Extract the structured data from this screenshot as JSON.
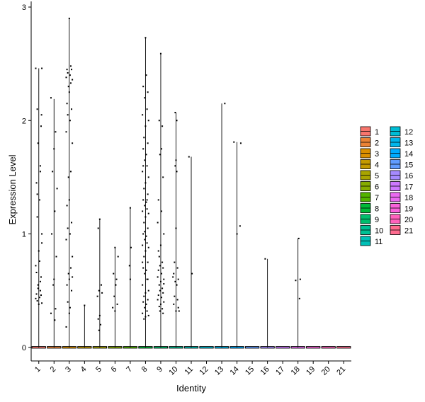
{
  "chart_data": {
    "type": "violin",
    "xlabel": "Identity",
    "ylabel": "Expression Level",
    "ylim": [
      -0.12,
      3.05
    ],
    "yticks": [
      0,
      1,
      2,
      3
    ],
    "categories": [
      "1",
      "2",
      "3",
      "4",
      "5",
      "6",
      "7",
      "8",
      "9",
      "10",
      "11",
      "12",
      "13",
      "14",
      "15",
      "16",
      "17",
      "18",
      "19",
      "20",
      "21"
    ],
    "colors": [
      "#F8766D",
      "#EB8335",
      "#DA8F00",
      "#C49A00",
      "#A9A400",
      "#86AC00",
      "#53B400",
      "#00BA38",
      "#00BE6D",
      "#00C094",
      "#00C0B7",
      "#00BDD5",
      "#00B6EB",
      "#00ABFD",
      "#619CFF",
      "#A58AFF",
      "#CF78FF",
      "#EA6AF1",
      "#FA62DB",
      "#FF62BC",
      "#FF6C90"
    ],
    "legend_position": "right",
    "max_values": [
      2.46,
      2.19,
      2.9,
      0.37,
      1.13,
      0.88,
      1.23,
      2.73,
      2.59,
      2.07,
      1.68,
      0,
      2.15,
      1.81,
      0,
      0.78,
      0,
      0.96,
      0,
      0,
      0
    ],
    "points": [
      [
        [
          -0.2,
          2.46
        ],
        [
          0.2,
          2.46
        ],
        [
          -0.1,
          2.1
        ],
        [
          0.15,
          1.95
        ],
        [
          -0.05,
          1.8
        ],
        [
          0.1,
          1.6
        ],
        [
          -0.15,
          1.45
        ],
        [
          0.05,
          1.3
        ],
        [
          -0.1,
          1.15
        ],
        [
          0.2,
          1.0
        ],
        [
          0.0,
          0.85
        ],
        [
          -0.2,
          0.72
        ],
        [
          0.15,
          0.62
        ],
        [
          -0.05,
          0.55
        ],
        [
          0.1,
          0.5
        ],
        [
          -0.15,
          0.47
        ],
        [
          0.05,
          0.44
        ],
        [
          -0.1,
          0.41
        ],
        [
          0.2,
          0.39
        ],
        [
          0.0,
          0.38
        ],
        [
          -0.2,
          0.43
        ],
        [
          0.15,
          0.46
        ],
        [
          -0.05,
          0.52
        ],
        [
          0.1,
          0.58
        ],
        [
          -0.15,
          0.66
        ],
        [
          0.05,
          0.76
        ],
        [
          0.2,
          0.92
        ],
        [
          -0.1,
          1.35
        ],
        [
          0.1,
          1.55
        ],
        [
          0.18,
          2.05
        ]
      ],
      [
        [
          -0.2,
          2.2
        ],
        [
          0.1,
          1.9
        ],
        [
          0.0,
          1.75
        ],
        [
          -0.1,
          1.55
        ],
        [
          0.2,
          1.4
        ],
        [
          0.05,
          1.2
        ],
        [
          -0.15,
          1.0
        ],
        [
          0.15,
          0.8
        ],
        [
          0.0,
          0.6
        ],
        [
          -0.05,
          0.55
        ],
        [
          0.1,
          0.34
        ],
        [
          -0.2,
          0.3
        ],
        [
          0.05,
          0.24
        ]
      ],
      [
        [
          0.0,
          2.9
        ],
        [
          -0.15,
          2.45
        ],
        [
          0.15,
          2.45
        ],
        [
          -0.1,
          2.42
        ],
        [
          0.05,
          2.4
        ],
        [
          -0.2,
          2.38
        ],
        [
          0.2,
          2.36
        ],
        [
          0.1,
          2.33
        ],
        [
          -0.05,
          2.3
        ],
        [
          0.0,
          2.25
        ],
        [
          -0.15,
          2.15
        ],
        [
          0.15,
          2.1
        ],
        [
          -0.1,
          2.05
        ],
        [
          0.05,
          2.0
        ],
        [
          -0.2,
          1.9
        ],
        [
          0.2,
          1.8
        ],
        [
          0.1,
          1.55
        ],
        [
          -0.05,
          1.5
        ],
        [
          0.0,
          1.3
        ],
        [
          -0.15,
          1.25
        ],
        [
          0.15,
          1.1
        ],
        [
          -0.1,
          1.05
        ],
        [
          0.05,
          1.0
        ],
        [
          -0.2,
          0.95
        ],
        [
          0.2,
          0.8
        ],
        [
          0.1,
          0.7
        ],
        [
          -0.05,
          0.65
        ],
        [
          0.0,
          0.6
        ],
        [
          -0.15,
          0.55
        ],
        [
          0.15,
          0.5
        ],
        [
          -0.1,
          0.4
        ],
        [
          0.05,
          0.35
        ],
        [
          0.0,
          0.3
        ],
        [
          -0.2,
          0.18
        ],
        [
          0.2,
          0.62
        ],
        [
          0.1,
          2.48
        ]
      ],
      [
        [
          0.0,
          0.37
        ]
      ],
      [
        [
          0.0,
          1.13
        ],
        [
          -0.1,
          1.05
        ],
        [
          0.1,
          0.55
        ],
        [
          -0.05,
          0.5
        ],
        [
          0.15,
          0.48
        ],
        [
          -0.15,
          0.45
        ],
        [
          0.0,
          0.28
        ],
        [
          -0.1,
          0.25
        ],
        [
          0.05,
          0.2
        ],
        [
          -0.05,
          0.15
        ]
      ],
      [
        [
          0.0,
          0.88
        ],
        [
          -0.1,
          0.65
        ],
        [
          0.1,
          0.6
        ],
        [
          0.05,
          0.55
        ],
        [
          -0.05,
          0.45
        ],
        [
          0.15,
          0.38
        ],
        [
          -0.15,
          0.35
        ],
        [
          0.0,
          0.32
        ],
        [
          0.2,
          0.8
        ]
      ],
      [
        [
          0.0,
          1.23
        ],
        [
          0.05,
          0.88
        ],
        [
          -0.05,
          0.72
        ],
        [
          0.0,
          0.6
        ]
      ],
      [
        [
          0.0,
          2.73
        ],
        [
          -0.15,
          2.3
        ],
        [
          0.15,
          2.25
        ],
        [
          -0.05,
          2.2
        ],
        [
          0.1,
          2.1
        ],
        [
          -0.2,
          2.05
        ],
        [
          0.2,
          2.0
        ],
        [
          0.0,
          1.95
        ],
        [
          -0.1,
          1.85
        ],
        [
          0.15,
          1.8
        ],
        [
          -0.15,
          1.75
        ],
        [
          0.05,
          1.7
        ],
        [
          -0.05,
          1.65
        ],
        [
          0.1,
          1.6
        ],
        [
          -0.2,
          1.55
        ],
        [
          0.2,
          1.5
        ],
        [
          0.0,
          1.45
        ],
        [
          -0.1,
          1.4
        ],
        [
          0.15,
          1.35
        ],
        [
          -0.15,
          1.3
        ],
        [
          0.05,
          1.28
        ],
        [
          -0.05,
          1.25
        ],
        [
          0.1,
          1.22
        ],
        [
          -0.2,
          1.2
        ],
        [
          0.2,
          1.18
        ],
        [
          0.0,
          1.15
        ],
        [
          -0.1,
          1.1
        ],
        [
          0.15,
          1.05
        ],
        [
          -0.15,
          1.0
        ],
        [
          0.05,
          0.98
        ],
        [
          -0.05,
          0.95
        ],
        [
          0.1,
          0.92
        ],
        [
          -0.2,
          0.9
        ],
        [
          0.2,
          0.88
        ],
        [
          0.0,
          0.85
        ],
        [
          -0.1,
          0.8
        ],
        [
          0.15,
          0.75
        ],
        [
          -0.15,
          0.7
        ],
        [
          0.05,
          0.68
        ],
        [
          -0.05,
          0.65
        ],
        [
          0.1,
          0.6
        ],
        [
          -0.2,
          0.55
        ],
        [
          0.2,
          0.5
        ],
        [
          0.0,
          0.48
        ],
        [
          -0.1,
          0.45
        ],
        [
          0.15,
          0.42
        ],
        [
          -0.15,
          0.4
        ],
        [
          0.05,
          0.38
        ],
        [
          -0.05,
          0.35
        ],
        [
          0.1,
          0.32
        ],
        [
          -0.2,
          0.3
        ],
        [
          0.2,
          0.28
        ],
        [
          0.0,
          0.27
        ],
        [
          -0.1,
          0.25
        ],
        [
          0.15,
          0.6
        ],
        [
          -0.15,
          1.6
        ],
        [
          0.05,
          2.4
        ],
        [
          -0.05,
          1.02
        ],
        [
          0.1,
          1.3
        ],
        [
          -0.2,
          0.75
        ]
      ],
      [
        [
          0.0,
          2.59
        ],
        [
          -0.1,
          2.0
        ],
        [
          0.1,
          1.95
        ],
        [
          -0.05,
          1.7
        ],
        [
          0.15,
          1.5
        ],
        [
          -0.15,
          1.3
        ],
        [
          0.05,
          1.2
        ],
        [
          -0.2,
          1.1
        ],
        [
          0.2,
          1.0
        ],
        [
          0.0,
          0.9
        ],
        [
          -0.1,
          0.8
        ],
        [
          0.1,
          0.75
        ],
        [
          -0.05,
          0.72
        ],
        [
          0.15,
          0.7
        ],
        [
          -0.15,
          0.68
        ],
        [
          0.05,
          0.65
        ],
        [
          -0.2,
          0.62
        ],
        [
          0.2,
          0.6
        ],
        [
          0.0,
          0.58
        ],
        [
          -0.1,
          0.55
        ],
        [
          0.1,
          0.52
        ],
        [
          -0.05,
          0.5
        ],
        [
          0.15,
          0.48
        ],
        [
          -0.15,
          0.46
        ],
        [
          0.05,
          0.44
        ],
        [
          -0.2,
          0.42
        ],
        [
          0.2,
          0.4
        ],
        [
          0.0,
          0.38
        ],
        [
          -0.1,
          0.36
        ],
        [
          0.1,
          0.34
        ],
        [
          -0.05,
          0.32
        ],
        [
          0.15,
          0.3
        ],
        [
          -0.15,
          0.85
        ],
        [
          0.05,
          1.75
        ],
        [
          0.2,
          0.56
        ]
      ],
      [
        [
          -0.05,
          2.07
        ],
        [
          0.05,
          2.0
        ],
        [
          0.0,
          1.65
        ],
        [
          -0.05,
          1.6
        ],
        [
          0.05,
          1.55
        ],
        [
          0.0,
          1.05
        ],
        [
          -0.1,
          0.75
        ],
        [
          0.1,
          0.7
        ],
        [
          -0.15,
          0.65
        ],
        [
          0.15,
          0.6
        ],
        [
          -0.05,
          0.58
        ],
        [
          0.05,
          0.55
        ],
        [
          -0.1,
          0.45
        ],
        [
          0.1,
          0.42
        ],
        [
          -0.15,
          0.38
        ],
        [
          0.15,
          0.35
        ],
        [
          0.0,
          0.32
        ],
        [
          0.2,
          0.32
        ],
        [
          -0.2,
          0.62
        ]
      ],
      [
        [
          -0.15,
          1.68
        ],
        [
          0.05,
          0.65
        ]
      ],
      [],
      [
        [
          0.2,
          2.15
        ]
      ],
      [
        [
          -0.2,
          1.81
        ],
        [
          0.25,
          1.8
        ],
        [
          0.0,
          1.0
        ],
        [
          0.2,
          1.07
        ]
      ],
      [],
      [
        [
          -0.15,
          0.78
        ]
      ],
      [],
      [
        [
          -0.15,
          0.59
        ],
        [
          0.15,
          0.6
        ],
        [
          0.05,
          0.96
        ],
        [
          0.1,
          0.43
        ]
      ],
      [],
      [],
      []
    ]
  }
}
